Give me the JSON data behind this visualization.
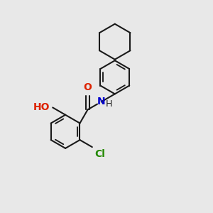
{
  "background_color": "#e8e8e8",
  "bond_color": "#1a1a1a",
  "atom_colors": {
    "O": "#dd2200",
    "N": "#0000cc",
    "Cl": "#228800",
    "H": "#1a1a1a",
    "C": "#1a1a1a"
  },
  "figsize": [
    3.0,
    3.0
  ],
  "dpi": 100,
  "lw": 1.5
}
